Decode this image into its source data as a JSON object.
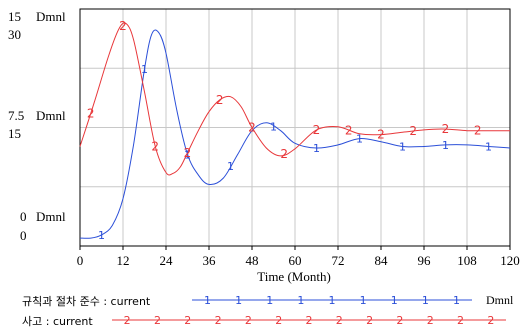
{
  "chart_data": {
    "type": "line",
    "xlabel": "Time (Month)",
    "x_ticks": [
      "0",
      "12",
      "24",
      "36",
      "48",
      "60",
      "72",
      "84",
      "96",
      "108",
      "120"
    ],
    "xlim": [
      0,
      120
    ],
    "grid": true,
    "legend_placement": "bottom",
    "y_axes": {
      "top_labels": [
        "15",
        "30"
      ],
      "mid_labels": [
        "7.5",
        "15"
      ],
      "bottom_labels": [
        "0",
        "0"
      ],
      "unit_label": "Dmnl"
    },
    "series": [
      {
        "name": "규칙과 절차 준수",
        "run": ": current",
        "unit": "Dmnl",
        "marker": "1",
        "color": "#2b4fd8",
        "ylim": [
          0,
          15
        ],
        "x": [
          0,
          3,
          6,
          9,
          12,
          15,
          18,
          20,
          22,
          24,
          27,
          30,
          33,
          36,
          40,
          44,
          48,
          52,
          56,
          60,
          66,
          72,
          78,
          84,
          90,
          96,
          102,
          108,
          114,
          120
        ],
        "values": [
          0.5,
          0.5,
          0.7,
          1.3,
          3.0,
          6.5,
          11.2,
          13.4,
          13.5,
          12.2,
          8.6,
          5.8,
          4.5,
          3.9,
          4.3,
          5.8,
          7.3,
          7.8,
          7.3,
          6.5,
          6.2,
          6.4,
          6.8,
          6.6,
          6.3,
          6.3,
          6.4,
          6.4,
          6.3,
          6.2
        ]
      },
      {
        "name": "사고",
        "run": ": current",
        "unit": "Dmnl",
        "marker": "2",
        "color": "#e8373a",
        "ylim": [
          0,
          30
        ],
        "x": [
          0,
          4,
          8,
          11,
          13,
          15,
          18,
          21,
          24,
          26,
          28,
          30,
          33,
          36,
          39,
          42,
          45,
          48,
          52,
          56,
          60,
          66,
          72,
          78,
          84,
          90,
          96,
          102,
          108,
          114,
          120
        ],
        "values": [
          12.6,
          18.2,
          24.1,
          27.6,
          28.1,
          26.0,
          19.5,
          12.6,
          9.3,
          9.2,
          10.0,
          11.8,
          14.6,
          17.0,
          18.5,
          18.9,
          17.6,
          15.0,
          12.4,
          11.4,
          12.3,
          14.7,
          15.1,
          14.2,
          14.1,
          14.4,
          14.7,
          14.8,
          14.6,
          14.6,
          14.6
        ]
      }
    ]
  }
}
